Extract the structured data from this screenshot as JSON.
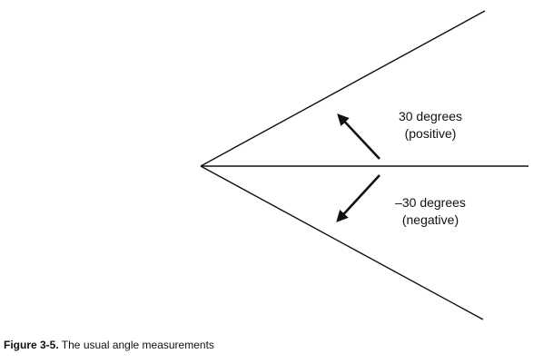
{
  "diagram": {
    "positive_angle": {
      "value": "30 degrees",
      "sign": "(positive)"
    },
    "negative_angle": {
      "value": "–30 degrees",
      "sign": "(negative)"
    }
  },
  "caption": {
    "label": "Figure 3-5.",
    "text": " The usual angle measurements"
  }
}
